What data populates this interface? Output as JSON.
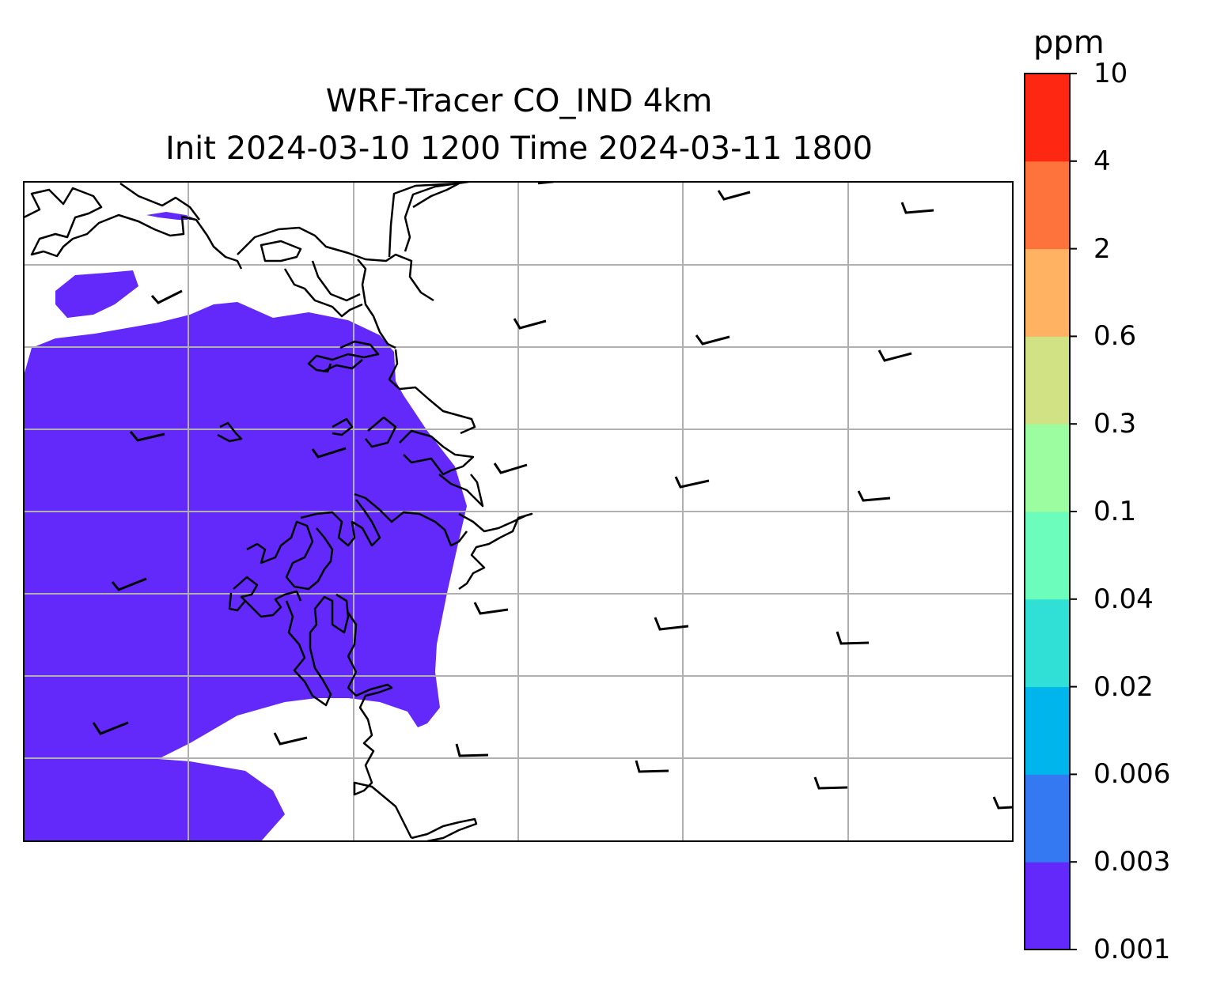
{
  "title": {
    "line1": "WRF-Tracer CO_IND 4km",
    "line2": "Init 2024-03-10 1200 Time 2024-03-11 1800"
  },
  "colorbar": {
    "unit": "ppm",
    "ticks": [
      "0.001",
      "0.003",
      "0.006",
      "0.02",
      "0.04",
      "0.1",
      "0.3",
      "0.6",
      "2",
      "4",
      "10"
    ],
    "colors": [
      "#6328fa",
      "#3478f2",
      "#00b4ec",
      "#30e0d6",
      "#6cfcbc",
      "#9cfca0",
      "#d0e284",
      "#feb262",
      "#fe723c",
      "#fe2812"
    ]
  },
  "map": {
    "plume_color": "#6328fa",
    "coastline_color": "#000000",
    "gridline_color": "#b0b0b0",
    "wind_barb_color": "#000000",
    "gridlines": "on"
  }
}
